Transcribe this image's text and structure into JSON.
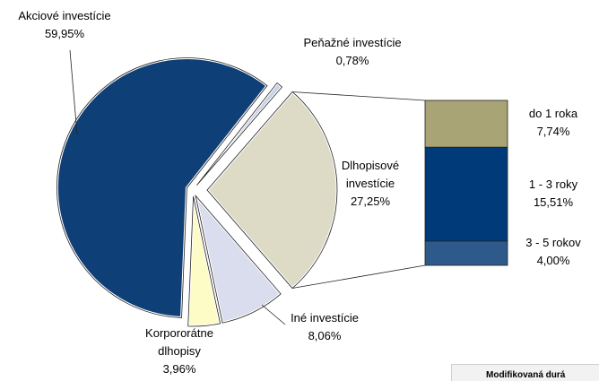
{
  "chart_data": {
    "type": "pie-of-bar",
    "pie": {
      "categories": [
        "Akciové investície",
        "Peňažné investície",
        "Dlhopisové investície",
        "Iné investície",
        "Korpororátne dlhopisy"
      ],
      "values": [
        59.95,
        0.78,
        27.25,
        8.06,
        3.96
      ],
      "value_labels": [
        "59,95%",
        "0,78%",
        "27,25%",
        "8,06%",
        "3,96%"
      ],
      "colors": [
        "#0f3f77",
        "#c9d1e6",
        "#dddbc6",
        "#d9dded",
        "#fdfbc6"
      ]
    },
    "bar": {
      "categories": [
        "do 1 roka",
        "1 - 3 roky",
        "3 - 5 rokov"
      ],
      "values": [
        7.74,
        15.51,
        4.0
      ],
      "value_labels": [
        "7,74%",
        "15,51%",
        "4,00%"
      ],
      "colors": [
        "#a8a476",
        "#003a78",
        "#2d5a8b"
      ]
    },
    "annotation": "Modifikovaná durá"
  }
}
